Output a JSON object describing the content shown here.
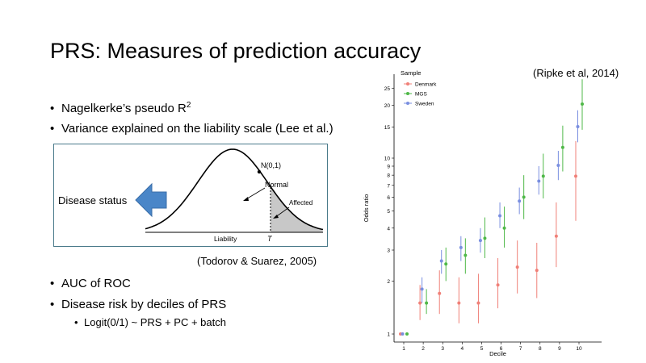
{
  "title": "PRS: Measures of prediction accuracy",
  "citations": {
    "ripke": "(Ripke et al, 2014)",
    "todorov": "(Todorov & Suarez, 2005)"
  },
  "bullets": {
    "b1_text": "Nagelkerke’s pseudo R",
    "b1_sup": "2",
    "b2": "Variance explained on the liability scale (Lee et al.)",
    "b3": "AUC of ROC",
    "b4": "Disease risk by deciles of PRS",
    "b4_sub": "Logit(0/1) ~ PRS + PC + batch"
  },
  "liability_diagram": {
    "disease_label": "Disease status",
    "n01": "N(0,1)",
    "normal": "Normal",
    "affected": "Affected",
    "xlabel": "Liability",
    "threshold": "T",
    "arrow_color": "#4a86c8"
  },
  "chart_data": {
    "type": "scatter",
    "legend_title": "Sample",
    "legend_position": "top-left",
    "xlabel": "Decile",
    "ylabel": "Odds ratio",
    "y_scale": "log",
    "x_ticks": [
      "1",
      "2",
      "3",
      "4",
      "5",
      "6",
      "7",
      "8",
      "9",
      "10"
    ],
    "y_ticks": [
      1,
      2,
      3,
      4,
      5,
      6,
      7,
      8,
      9,
      10,
      15,
      20,
      25
    ],
    "grid": false,
    "series": [
      {
        "name": "Denmark",
        "color": "#f08078",
        "points": [
          {
            "x": 1,
            "y": 1.0,
            "lo": 1.0,
            "hi": 1.0
          },
          {
            "x": 2,
            "y": 1.5,
            "lo": 1.2,
            "hi": 1.9
          },
          {
            "x": 3,
            "y": 1.7,
            "lo": 1.3,
            "hi": 2.3
          },
          {
            "x": 4,
            "y": 1.5,
            "lo": 1.15,
            "hi": 2.1
          },
          {
            "x": 5,
            "y": 1.5,
            "lo": 1.15,
            "hi": 2.2
          },
          {
            "x": 6,
            "y": 1.9,
            "lo": 1.4,
            "hi": 2.7
          },
          {
            "x": 7,
            "y": 2.4,
            "lo": 1.7,
            "hi": 3.4
          },
          {
            "x": 8,
            "y": 2.3,
            "lo": 1.6,
            "hi": 3.3
          },
          {
            "x": 9,
            "y": 3.6,
            "lo": 2.4,
            "hi": 5.6
          },
          {
            "x": 10,
            "y": 7.9,
            "lo": 4.4,
            "hi": 12.5
          }
        ]
      },
      {
        "name": "MGS",
        "color": "#4fb848",
        "points": [
          {
            "x": 1,
            "y": 1.0,
            "lo": 1.0,
            "hi": 1.0
          },
          {
            "x": 2,
            "y": 1.5,
            "lo": 1.3,
            "hi": 1.8
          },
          {
            "x": 3,
            "y": 2.5,
            "lo": 2.0,
            "hi": 3.1
          },
          {
            "x": 4,
            "y": 2.8,
            "lo": 2.2,
            "hi": 3.5
          },
          {
            "x": 5,
            "y": 3.5,
            "lo": 2.7,
            "hi": 4.6
          },
          {
            "x": 6,
            "y": 4.0,
            "lo": 3.1,
            "hi": 5.3
          },
          {
            "x": 7,
            "y": 6.0,
            "lo": 4.5,
            "hi": 8.0
          },
          {
            "x": 8,
            "y": 7.9,
            "lo": 5.9,
            "hi": 10.6
          },
          {
            "x": 9,
            "y": 11.5,
            "lo": 8.4,
            "hi": 15.3
          },
          {
            "x": 10,
            "y": 20.3,
            "lo": 14.5,
            "hi": 28.1
          }
        ]
      },
      {
        "name": "Sweden",
        "color": "#7a8fe0",
        "points": [
          {
            "x": 1,
            "y": 1.0,
            "lo": 1.0,
            "hi": 1.0
          },
          {
            "x": 2,
            "y": 1.8,
            "lo": 1.5,
            "hi": 2.1
          },
          {
            "x": 3,
            "y": 2.6,
            "lo": 2.2,
            "hi": 3.0
          },
          {
            "x": 4,
            "y": 3.1,
            "lo": 2.6,
            "hi": 3.6
          },
          {
            "x": 5,
            "y": 3.4,
            "lo": 2.9,
            "hi": 4.0
          },
          {
            "x": 6,
            "y": 4.7,
            "lo": 4.0,
            "hi": 5.6
          },
          {
            "x": 7,
            "y": 5.7,
            "lo": 4.8,
            "hi": 6.8
          },
          {
            "x": 8,
            "y": 7.4,
            "lo": 6.2,
            "hi": 9.0
          },
          {
            "x": 9,
            "y": 9.1,
            "lo": 7.5,
            "hi": 11.0
          },
          {
            "x": 10,
            "y": 15.1,
            "lo": 12.3,
            "hi": 18.7
          }
        ]
      }
    ]
  }
}
